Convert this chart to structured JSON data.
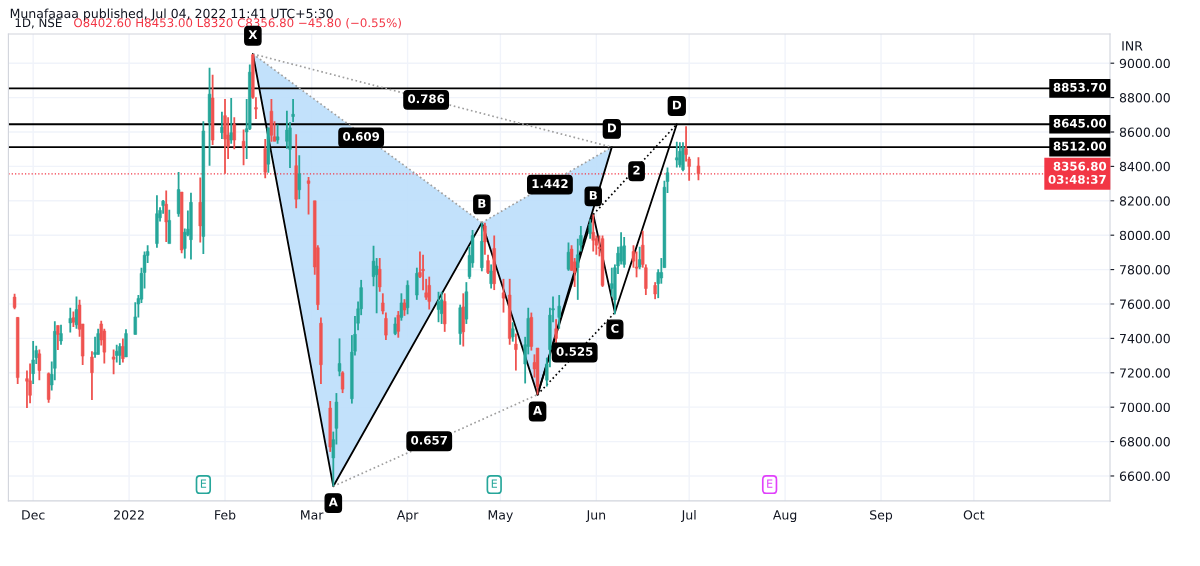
{
  "chart_data": {
    "type": "candlestick",
    "title": "1D, NSE",
    "subtitle": "O8402.60 H8453.00 L8320 C8356.80 −45.80 (−0.55%)",
    "ylabel": "INR",
    "x": [
      "2021-11-25",
      "2021-11-26",
      "2021-11-29",
      "2021-11-30",
      "2021-12-01",
      "2021-12-02",
      "2021-12-03",
      "2021-12-06",
      "2021-12-07",
      "2021-12-08",
      "2021-12-09",
      "2021-12-10",
      "2021-12-13",
      "2021-12-14",
      "2021-12-15",
      "2021-12-16",
      "2021-12-17",
      "2021-12-20",
      "2021-12-21",
      "2021-12-22",
      "2021-12-23",
      "2021-12-24",
      "2021-12-27",
      "2021-12-28",
      "2021-12-29",
      "2021-12-30",
      "2021-12-31",
      "2022-01-03",
      "2022-01-04",
      "2022-01-05",
      "2022-01-06",
      "2022-01-07",
      "2022-01-10",
      "2022-01-11",
      "2022-01-12",
      "2022-01-13",
      "2022-01-14",
      "2022-01-17",
      "2022-01-18",
      "2022-01-19",
      "2022-01-20",
      "2022-01-21",
      "2022-01-24",
      "2022-01-25",
      "2022-01-27",
      "2022-01-28",
      "2022-01-31",
      "2022-02-01",
      "2022-02-02",
      "2022-02-03",
      "2022-02-04",
      "2022-02-07",
      "2022-02-08",
      "2022-02-09",
      "2022-02-10",
      "2022-02-11",
      "2022-02-14",
      "2022-02-15",
      "2022-02-16",
      "2022-02-17",
      "2022-02-18",
      "2022-02-21",
      "2022-02-22",
      "2022-02-23",
      "2022-02-24",
      "2022-02-25",
      "2022-02-28",
      "2022-03-02",
      "2022-03-03",
      "2022-03-04",
      "2022-03-07",
      "2022-03-08",
      "2022-03-09",
      "2022-03-10",
      "2022-03-11",
      "2022-03-14",
      "2022-03-15",
      "2022-03-16",
      "2022-03-17",
      "2022-03-21",
      "2022-03-22",
      "2022-03-23",
      "2022-03-24",
      "2022-03-25",
      "2022-03-28",
      "2022-03-29",
      "2022-03-30",
      "2022-03-31",
      "2022-04-01",
      "2022-04-04",
      "2022-04-05",
      "2022-04-06",
      "2022-04-07",
      "2022-04-08",
      "2022-04-11",
      "2022-04-12",
      "2022-04-13",
      "2022-04-18",
      "2022-04-19",
      "2022-04-20",
      "2022-04-21",
      "2022-04-22",
      "2022-04-25",
      "2022-04-26",
      "2022-04-27",
      "2022-04-28",
      "2022-04-29",
      "2022-05-02",
      "2022-05-04",
      "2022-05-05",
      "2022-05-06",
      "2022-05-09",
      "2022-05-10",
      "2022-05-11",
      "2022-05-12",
      "2022-05-13",
      "2022-05-16",
      "2022-05-17",
      "2022-05-18",
      "2022-05-19",
      "2022-05-20",
      "2022-05-23",
      "2022-05-24",
      "2022-05-25",
      "2022-05-26",
      "2022-05-27",
      "2022-05-30",
      "2022-05-31",
      "2022-06-01",
      "2022-06-02",
      "2022-06-03",
      "2022-06-06",
      "2022-06-07",
      "2022-06-08",
      "2022-06-09",
      "2022-06-10",
      "2022-06-13",
      "2022-06-14",
      "2022-06-15",
      "2022-06-16",
      "2022-06-17",
      "2022-06-20",
      "2022-06-21",
      "2022-06-22",
      "2022-06-23",
      "2022-06-24",
      "2022-06-27",
      "2022-06-28",
      "2022-06-29",
      "2022-06-30",
      "2022-07-01",
      "2022-07-04"
    ],
    "ohlc": [
      [
        7640,
        7660,
        7570,
        7580
      ],
      [
        7522,
        7525,
        7135,
        7172
      ],
      [
        7166,
        7213,
        6995,
        7151
      ],
      [
        7153,
        7254,
        7023,
        7069
      ],
      [
        7195,
        7385,
        7135,
        7275
      ],
      [
        7288,
        7357,
        7251,
        7329
      ],
      [
        7310,
        7335,
        7157,
        7213
      ],
      [
        7195,
        7202,
        7026,
        7045
      ],
      [
        7129,
        7266,
        7097,
        7191
      ],
      [
        7226,
        7499,
        7157,
        7441
      ],
      [
        7475,
        7475,
        7333,
        7423
      ],
      [
        7385,
        7479,
        7363,
        7428
      ],
      [
        7490,
        7578,
        7434,
        7516
      ],
      [
        7520,
        7557,
        7466,
        7494
      ],
      [
        7479,
        7643,
        7456,
        7568
      ],
      [
        7594,
        7624,
        7410,
        7453
      ],
      [
        7484,
        7484,
        7245,
        7297
      ],
      [
        7292,
        7325,
        7041,
        7200
      ],
      [
        7307,
        7410,
        7288,
        7318
      ],
      [
        7307,
        7456,
        7307,
        7428
      ],
      [
        7484,
        7503,
        7359,
        7391
      ],
      [
        7443,
        7456,
        7254,
        7320
      ],
      [
        7292,
        7335,
        7191,
        7279
      ],
      [
        7301,
        7363,
        7260,
        7325
      ],
      [
        7301,
        7372,
        7245,
        7353
      ],
      [
        7353,
        7400,
        7260,
        7282
      ],
      [
        7292,
        7453,
        7292,
        7428
      ],
      [
        7423,
        7610,
        7423,
        7525
      ],
      [
        7600,
        7652,
        7522,
        7632
      ],
      [
        7628,
        7811,
        7606,
        7778
      ],
      [
        7783,
        7905,
        7690,
        7884
      ],
      [
        7882,
        7942,
        7839,
        7905
      ],
      [
        7951,
        8232,
        7927,
        8125
      ],
      [
        8101,
        8163,
        8079,
        8144
      ],
      [
        8172,
        8204,
        8125,
        8198
      ],
      [
        8180,
        8260,
        7961,
        8077
      ],
      [
        7951,
        8148,
        7951,
        8086
      ],
      [
        8125,
        8368,
        8107,
        8265
      ],
      [
        8251,
        8251,
        7895,
        7914
      ],
      [
        7923,
        8039,
        7864,
        8017
      ],
      [
        8002,
        8144,
        7994,
        8035
      ],
      [
        7974,
        8247,
        7858,
        8191
      ],
      [
        8191,
        8335,
        7957,
        8054
      ],
      [
        7993,
        8662,
        7890,
        8606
      ],
      [
        8656,
        8974,
        8404,
        8820
      ],
      [
        8798,
        8933,
        8525,
        8553
      ],
      [
        8596,
        8718,
        8559,
        8628
      ],
      [
        8695,
        8792,
        8357,
        8559
      ],
      [
        8583,
        8686,
        8443,
        8516
      ],
      [
        8553,
        8798,
        8531,
        8596
      ],
      [
        8643,
        8686,
        8499,
        8553
      ],
      [
        8546,
        8615,
        8406,
        8508
      ],
      [
        8600,
        8792,
        8443,
        8619
      ],
      [
        8619,
        8993,
        8611,
        8948
      ],
      [
        9049,
        9054,
        8793,
        8802
      ],
      [
        8742,
        8802,
        8675,
        8733
      ],
      [
        8503,
        8559,
        8331,
        8366
      ],
      [
        8413,
        8624,
        8363,
        8624
      ],
      [
        8721,
        8792,
        8544,
        8581
      ],
      [
        8572,
        8662,
        8546,
        8546
      ],
      [
        8553,
        8643,
        8531,
        8572
      ],
      [
        8546,
        8723,
        8503,
        8611
      ],
      [
        8499,
        8658,
        8391,
        8624
      ],
      [
        8690,
        8792,
        8658,
        8703
      ],
      [
        8404,
        8587,
        8157,
        8209
      ],
      [
        8264,
        8465,
        8209,
        8357
      ],
      [
        8316,
        8338,
        8120,
        8301
      ],
      [
        8200,
        8200,
        7770,
        7815
      ],
      [
        7927,
        7942,
        7565,
        7596
      ],
      [
        7488,
        7522,
        7135,
        7247
      ],
      [
        6995,
        7036,
        6740,
        6768
      ],
      [
        6705,
        6858,
        6540,
        6811
      ],
      [
        6877,
        7082,
        6783,
        7030
      ],
      [
        7209,
        7400,
        7180,
        7254
      ],
      [
        7200,
        7209,
        7082,
        7105
      ],
      [
        7049,
        7419,
        7021,
        7320
      ],
      [
        7325,
        7530,
        7300,
        7424
      ],
      [
        7488,
        7615,
        7447,
        7572
      ],
      [
        7572,
        7740,
        7535,
        7695
      ],
      [
        7759,
        7938,
        7703,
        7849
      ],
      [
        7770,
        7867,
        7546,
        7821
      ],
      [
        7802,
        7867,
        7671,
        7699
      ],
      [
        7606,
        7662,
        7540,
        7559
      ],
      [
        7516,
        7550,
        7391,
        7419
      ],
      [
        7428,
        7522,
        7419,
        7484
      ],
      [
        7535,
        7559,
        7404,
        7441
      ],
      [
        7522,
        7662,
        7503,
        7606
      ],
      [
        7606,
        7628,
        7531,
        7565
      ],
      [
        7578,
        7737,
        7540,
        7709
      ],
      [
        7652,
        7811,
        7624,
        7778
      ],
      [
        7783,
        7905,
        7751,
        7759
      ],
      [
        7802,
        7886,
        7680,
        7793
      ],
      [
        7665,
        7746,
        7624,
        7639
      ],
      [
        7708,
        7759,
        7568,
        7615
      ],
      [
        7568,
        7671,
        7494,
        7615
      ],
      [
        7544,
        7671,
        7484,
        7624
      ],
      [
        7615,
        7662,
        7438,
        7484
      ],
      [
        7428,
        7596,
        7363,
        7578
      ],
      [
        7583,
        7662,
        7353,
        7438
      ],
      [
        7512,
        7727,
        7484,
        7671
      ],
      [
        7759,
        7933,
        7746,
        7882
      ],
      [
        7839,
        8030,
        7811,
        7998
      ],
      [
        7811,
        8073,
        7790,
        7965
      ],
      [
        8054,
        8073,
        7886,
        7961
      ],
      [
        7852,
        7886,
        7774,
        7783
      ],
      [
        7718,
        7830,
        7690,
        7792
      ],
      [
        7923,
        7998,
        7681,
        7718
      ],
      [
        7665,
        7746,
        7550,
        7634
      ],
      [
        7652,
        7746,
        7363,
        7400
      ],
      [
        7409,
        7494,
        7381,
        7456
      ],
      [
        7367,
        7428,
        7213,
        7335
      ],
      [
        7251,
        7409,
        7138,
        7363
      ],
      [
        7353,
        7578,
        7307,
        7516
      ],
      [
        7522,
        7550,
        7329,
        7353
      ],
      [
        7260,
        7307,
        7172,
        7222
      ],
      [
        7344,
        7344,
        7073,
        7120
      ],
      [
        7157,
        7288,
        7120,
        7251
      ],
      [
        7335,
        7578,
        7232,
        7535
      ],
      [
        7565,
        7643,
        7494,
        7573
      ],
      [
        7456,
        7512,
        7363,
        7400
      ],
      [
        7522,
        7652,
        7456,
        7587
      ],
      [
        7802,
        7957,
        7793,
        7901
      ],
      [
        7919,
        7942,
        7793,
        7796
      ],
      [
        7845,
        7867,
        7699,
        7783
      ],
      [
        7811,
        7980,
        7624,
        7886
      ],
      [
        7942,
        8054,
        7905,
        7998
      ],
      [
        8008,
        8092,
        7980,
        8064
      ],
      [
        8017,
        8120,
        7905,
        7970
      ],
      [
        7980,
        7998,
        7886,
        7942
      ],
      [
        7929,
        7998,
        7877,
        7923
      ],
      [
        7980,
        7998,
        7699,
        7708
      ],
      [
        7690,
        7811,
        7643,
        7718
      ],
      [
        7624,
        7830,
        7540,
        7811
      ],
      [
        7821,
        7933,
        7774,
        7895
      ],
      [
        7849,
        8017,
        7830,
        7933
      ],
      [
        7830,
        7989,
        7811,
        7938
      ],
      [
        7905,
        7942,
        7811,
        7849
      ],
      [
        7815,
        7905,
        7755,
        7808
      ],
      [
        7815,
        7933,
        7802,
        7858
      ],
      [
        7942,
        8026,
        7811,
        7830
      ],
      [
        7811,
        7830,
        7652,
        7690
      ],
      [
        7708,
        7727,
        7628,
        7658
      ],
      [
        7718,
        7802,
        7634,
        7783
      ],
      [
        7751,
        7867,
        7718,
        7783
      ],
      [
        7811,
        8316,
        7811,
        8279
      ],
      [
        8312,
        8394,
        8245,
        8363
      ],
      [
        8437,
        8544,
        8394,
        8450
      ],
      [
        8409,
        8540,
        8394,
        8488
      ],
      [
        8381,
        8540,
        8372,
        8512
      ],
      [
        8503,
        8634,
        8428,
        8469
      ],
      [
        8443,
        8456,
        8316,
        8400
      ],
      [
        8402.6,
        8453,
        8320,
        8356.8
      ]
    ],
    "series": [
      {
        "type": "line",
        "color": "#000000",
        "x": [
          "2022-02-10",
          "2022-03-08",
          "2022-04-25",
          "2022-05-13",
          "2022-06-06"
        ],
        "values": [
          9054,
          6540,
          8073,
          7073,
          8512
        ]
      },
      {
        "type": "line",
        "color": "#000000",
        "x": [
          "2022-05-13",
          "2022-05-31",
          "2022-06-07",
          "2022-06-27"
        ],
        "values": [
          7073,
          8120,
          7550,
          8645
        ]
      },
      {
        "type": "line",
        "color": "#9e9e9e",
        "line_style": "dotted",
        "x": [
          "2022-02-10",
          "2022-04-25"
        ],
        "values": [
          9054,
          8073
        ]
      },
      {
        "type": "line",
        "color": "#9e9e9e",
        "line_style": "dotted",
        "x": [
          "2022-02-10",
          "2022-06-06"
        ],
        "values": [
          9054,
          8512
        ]
      },
      {
        "type": "line",
        "color": "#9e9e9e",
        "line_style": "dotted",
        "x": [
          "2022-03-08",
          "2022-05-13"
        ],
        "values": [
          6540,
          7073
        ]
      },
      {
        "type": "line",
        "color": "#9e9e9e",
        "line_style": "dotted",
        "x": [
          "2022-04-25",
          "2022-06-06"
        ],
        "values": [
          8073,
          8512
        ]
      },
      {
        "type": "line",
        "color": "#000000",
        "line_style": "dotted",
        "x": [
          "2022-05-13",
          "2022-06-07"
        ],
        "values": [
          7073,
          7550
        ]
      },
      {
        "type": "line",
        "color": "#000000",
        "line_style": "dotted",
        "x": [
          "2022-05-31",
          "2022-06-27"
        ],
        "values": [
          8120,
          8645
        ]
      }
    ],
    "annotations": [
      "Munafaaaa published, Jul 04, 2022 11:41 UTC+5:30",
      {
        "text": "X",
        "x": "2022-02-10",
        "y": 9054
      },
      {
        "text": "A",
        "x": "2022-03-08",
        "y": 6540
      },
      {
        "text": "B",
        "x": "2022-04-25",
        "y": 8073
      },
      {
        "text": "A",
        "x": "2022-05-13",
        "y": 7073
      },
      {
        "text": "D",
        "x": "2022-06-06",
        "y": 8512
      },
      {
        "text": "B",
        "x": "2022-05-31",
        "y": 8120
      },
      {
        "text": "C",
        "x": "2022-06-07",
        "y": 7550
      },
      {
        "text": "D",
        "x": "2022-06-27",
        "y": 8645
      },
      {
        "text": "0.609",
        "x": "2022-03-17",
        "y": 8568
      },
      {
        "text": "0.786",
        "x": "2022-04-07",
        "y": 8787
      },
      {
        "text": "1.442",
        "x": "2022-05-17",
        "y": 8294
      },
      {
        "text": "0.657",
        "x": "2022-04-08",
        "y": 6802
      },
      {
        "text": "0.525",
        "x": "2022-05-25",
        "y": 7318
      },
      {
        "text": "2",
        "x": "2022-06-14",
        "y": 8372
      },
      {
        "text": "E",
        "x": "2022-01-25"
      },
      {
        "text": "E",
        "x": "2022-04-29"
      },
      {
        "text": "E",
        "x": "2022-07-27"
      }
    ],
    "ref_lines": [
      {
        "axis": "y",
        "value": 8853.7,
        "label": "8853.70",
        "color": "#000000"
      },
      {
        "axis": "y",
        "value": 8645,
        "label": "8645.00",
        "color": "#000000"
      },
      {
        "axis": "y",
        "value": 8512,
        "label": "8512.00",
        "color": "#000000"
      },
      {
        "axis": "y",
        "value": 8356.8,
        "label": "8356.80\n03:48:37",
        "color": "#f23645",
        "line_style": "dotted"
      }
    ],
    "xlim": [
      "2021-11-23",
      "2022-11-14"
    ],
    "xticks": [
      {
        "value": "2021-12-01",
        "label": "Dec"
      },
      {
        "value": "2022-01-01",
        "label": "2022"
      },
      {
        "value": "2022-02-01",
        "label": "Feb"
      },
      {
        "value": "2022-03-01",
        "label": "Mar"
      },
      {
        "value": "2022-04-01",
        "label": "Apr"
      },
      {
        "value": "2022-05-01",
        "label": "May"
      },
      {
        "value": "2022-06-01",
        "label": "Jun"
      },
      {
        "value": "2022-07-01",
        "label": "Jul"
      },
      {
        "value": "2022-08-01",
        "label": "Aug"
      },
      {
        "value": "2022-09-01",
        "label": "Sep"
      },
      {
        "value": "2022-10-01",
        "label": "Oct"
      }
    ],
    "ylim": [
      6455,
      9170
    ],
    "yticks": [
      {
        "value": 6600,
        "label": "6600.00"
      },
      {
        "value": 6800,
        "label": "6800.00"
      },
      {
        "value": 7000,
        "label": "7000.00"
      },
      {
        "value": 7200,
        "label": "7200.00"
      },
      {
        "value": 7400,
        "label": "7400.00"
      },
      {
        "value": 7600,
        "label": "7600.00"
      },
      {
        "value": 7800,
        "label": "7800.00"
      },
      {
        "value": 8000,
        "label": "8000.00"
      },
      {
        "value": 8200,
        "label": "8200.00"
      },
      {
        "value": 8400,
        "label": "8400.00"
      },
      {
        "value": 8600,
        "label": "8600.00"
      },
      {
        "value": 8800,
        "label": "8800.00"
      },
      {
        "value": 9000,
        "label": "9000.00"
      }
    ],
    "grid": true
  }
}
